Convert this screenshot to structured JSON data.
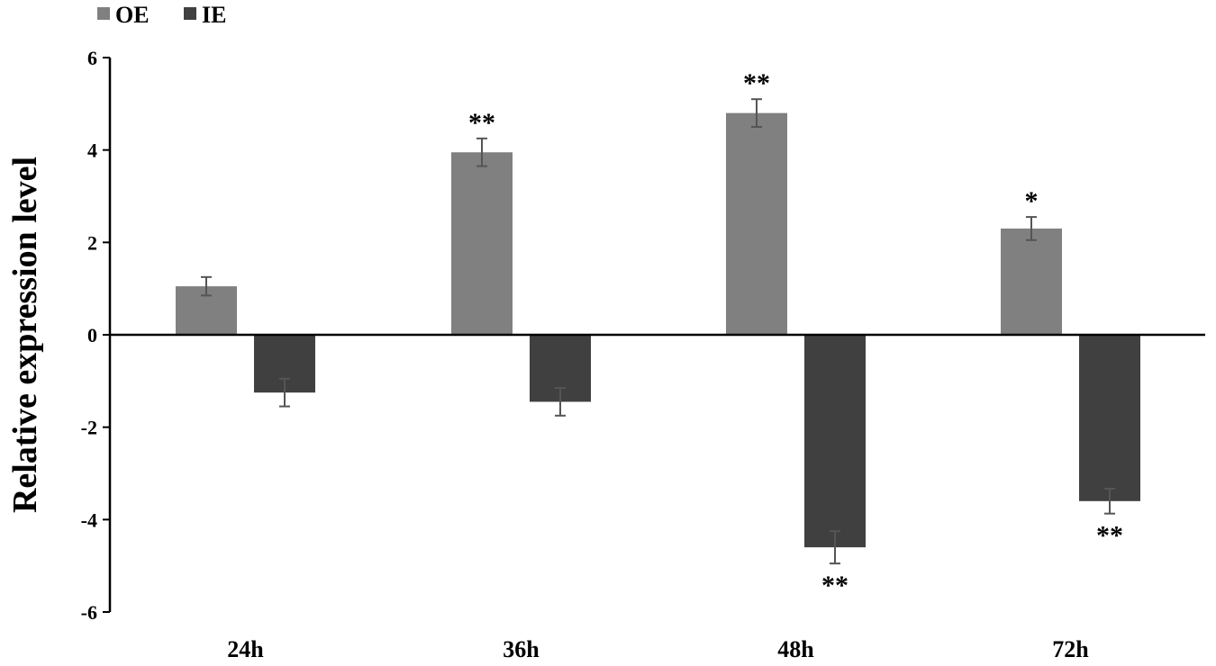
{
  "chart_data": {
    "type": "bar",
    "title": "",
    "xlabel": "",
    "ylabel": "Relative expression level",
    "ylim": [
      -6,
      6
    ],
    "yticks": [
      6,
      4,
      2,
      0,
      -2,
      -4,
      -6
    ],
    "ytick_labels": [
      "6",
      "4",
      "2",
      "0",
      "-2",
      "-4",
      "-6"
    ],
    "categories": [
      "24h",
      "36h",
      "48h",
      "72h"
    ],
    "legend_position": "top-left",
    "grid": false,
    "series": [
      {
        "name": "OE",
        "color": "#808080",
        "values": [
          1.05,
          3.95,
          4.8,
          2.3
        ],
        "errors": [
          0.2,
          0.3,
          0.3,
          0.25
        ],
        "significance": [
          "",
          "**",
          "**",
          "*"
        ]
      },
      {
        "name": "IE",
        "color": "#404040",
        "values": [
          -1.25,
          -1.45,
          -4.6,
          -3.6
        ],
        "errors": [
          0.3,
          0.3,
          0.35,
          0.27
        ],
        "significance": [
          "",
          "",
          "**",
          "**"
        ]
      }
    ]
  }
}
